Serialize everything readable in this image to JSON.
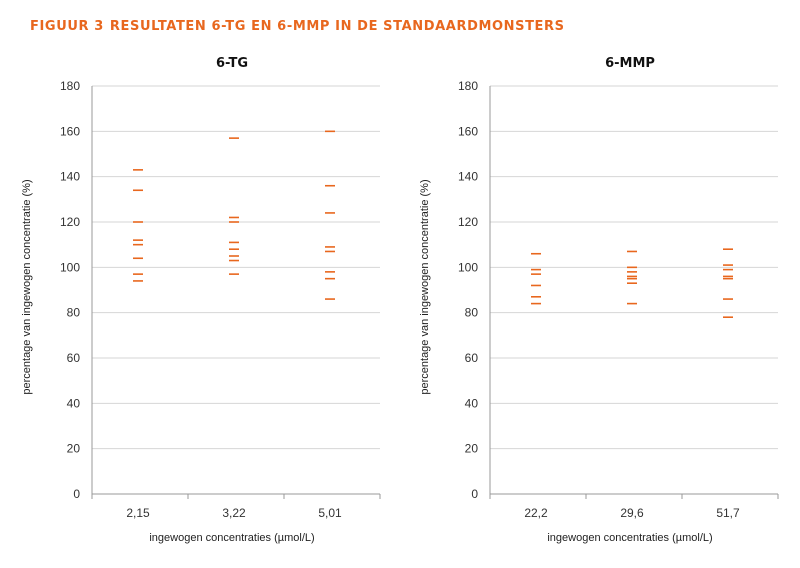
{
  "figure": {
    "label": "FIGUUR 3",
    "title": "RESULTATEN 6-TG EN 6-MMP IN DE STANDAARDMONSTERS"
  },
  "colors": {
    "accent": "#e8671e",
    "grid": "#d6d6d6",
    "axis": "#999999"
  },
  "chart_data": [
    {
      "type": "scatter",
      "title": "6-TG",
      "xlabel": "ingewogen concentraties (µmol/L)",
      "ylabel": "percentage van ingewogen concentratie (%)",
      "categories": [
        "2,15",
        "3,22",
        "5,01"
      ],
      "ylim": [
        0,
        180
      ],
      "yticks": [
        0,
        20,
        40,
        60,
        80,
        100,
        120,
        140,
        160,
        180
      ],
      "grid": true,
      "marker": "dash",
      "points": [
        [
          94,
          97,
          104,
          110,
          112,
          120,
          134,
          143
        ],
        [
          97,
          103,
          105,
          108,
          111,
          120,
          122,
          157
        ],
        [
          86,
          95,
          98,
          107,
          109,
          124,
          136,
          160
        ]
      ]
    },
    {
      "type": "scatter",
      "title": "6-MMP",
      "xlabel": "ingewogen concentraties (µmol/L)",
      "ylabel": "percentage van ingewogen concentratie (%)",
      "categories": [
        "22,2",
        "29,6",
        "51,7"
      ],
      "ylim": [
        0,
        180
      ],
      "yticks": [
        0,
        20,
        40,
        60,
        80,
        100,
        120,
        140,
        160,
        180
      ],
      "grid": true,
      "marker": "dash",
      "points": [
        [
          84,
          87,
          92,
          97,
          99,
          106
        ],
        [
          84,
          93,
          95,
          96,
          98,
          100,
          107
        ],
        [
          78,
          86,
          95,
          96,
          99,
          101,
          108
        ]
      ]
    }
  ]
}
